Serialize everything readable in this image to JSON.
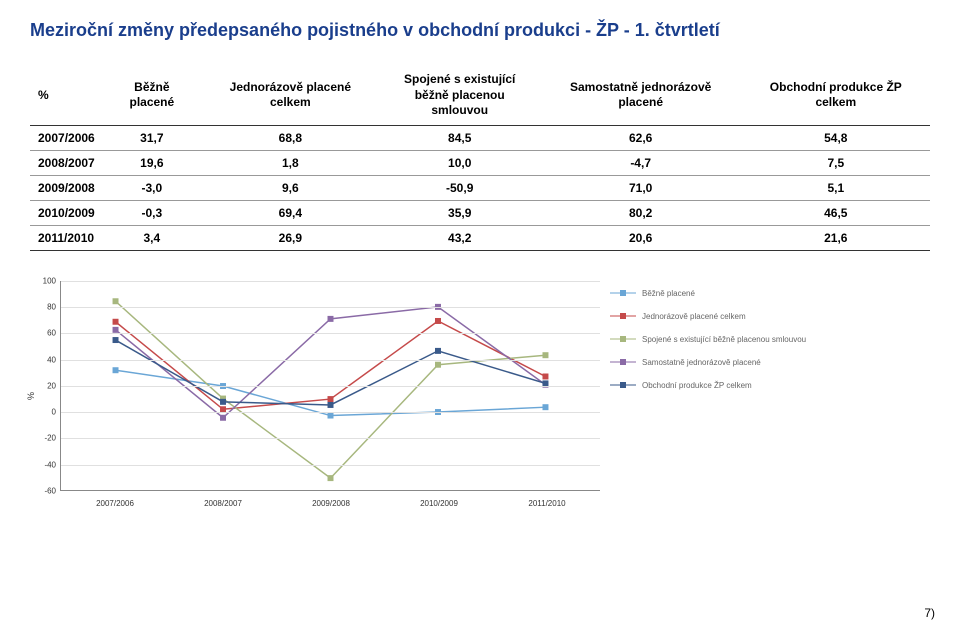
{
  "title_text": "Meziroční změny předepsaného pojistného v obchodní produkci - ŽP  - 1. čtvrtletí",
  "title_color": "#1a3e8c",
  "columns": [
    "%",
    "Běžně placené",
    "Jednorázově placené celkem",
    "Spojené s existující běžně placenou smlouvou",
    "Samostatně jednorázově placené",
    "Obchodní produkce ŽP celkem"
  ],
  "rows": [
    [
      "2007/2006",
      "31,7",
      "68,8",
      "84,5",
      "62,6",
      "54,8"
    ],
    [
      "2008/2007",
      "19,6",
      "1,8",
      "10,0",
      "-4,7",
      "7,5"
    ],
    [
      "2009/2008",
      "-3,0",
      "9,6",
      "-50,9",
      "71,0",
      "5,1"
    ],
    [
      "2010/2009",
      "-0,3",
      "69,4",
      "35,9",
      "80,2",
      "46,5"
    ],
    [
      "2011/2010",
      "3,4",
      "26,9",
      "43,2",
      "20,6",
      "21,6"
    ]
  ],
  "chart": {
    "categories": [
      "2007/2006",
      "2008/2007",
      "2009/2008",
      "2010/2009",
      "2011/2010"
    ],
    "ylim": [
      -60,
      100
    ],
    "ytick_step": 20,
    "y_axis_label": "%",
    "series": [
      {
        "name": "Běžně placené",
        "color": "#6aa6d6",
        "values": [
          31.7,
          19.6,
          -3.0,
          -0.3,
          3.4
        ]
      },
      {
        "name": "Jednorázově placené celkem",
        "color": "#c54a4a",
        "values": [
          68.8,
          1.8,
          9.6,
          69.4,
          26.9
        ]
      },
      {
        "name": "Spojené s existující běžně placenou smlouvou",
        "color": "#a7b77e",
        "values": [
          84.5,
          10.0,
          -50.9,
          35.9,
          43.2
        ]
      },
      {
        "name": "Samostatně jednorázově placené",
        "color": "#8a6aa6",
        "values": [
          62.6,
          -4.7,
          71.0,
          80.2,
          20.6
        ]
      },
      {
        "name": "Obchodní produkce ŽP celkem",
        "color": "#3a5a8a",
        "values": [
          54.8,
          7.5,
          5.1,
          46.5,
          21.6
        ]
      }
    ],
    "grid_color": "#e0e0e0",
    "axis_color": "#888888",
    "marker_size": 6
  },
  "page_num": "7)"
}
